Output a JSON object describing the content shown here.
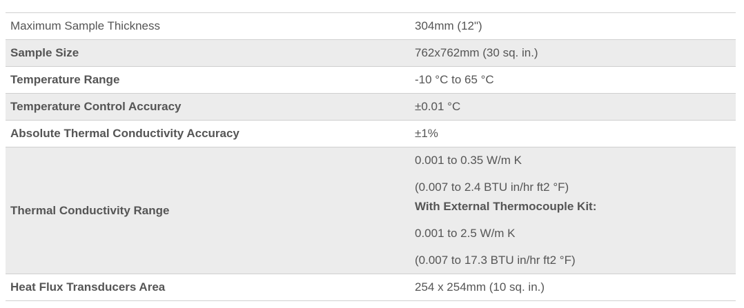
{
  "specs": {
    "rows": [
      {
        "label": "Maximum Sample Thickness",
        "value": "304mm (12\")"
      },
      {
        "label": "Sample Size",
        "value": "762x762mm (30 sq. in.)"
      },
      {
        "label": "Temperature Range",
        "value": "-10 °C to 65 °C"
      },
      {
        "label": "Temperature Control Accuracy",
        "value": "±0.01 °C"
      },
      {
        "label": "Absolute Thermal Conductivity Accuracy",
        "value": "±1%"
      },
      {
        "label": "Thermal Conductivity Range",
        "lines": [
          "0.001 to 0.35 W/m K",
          "(0.007 to 2.4 BTU in/hr ft2 °F)",
          "With External Thermocouple Kit:",
          "0.001 to 2.5 W/m K",
          "(0.007 to 17.3 BTU in/hr ft2 °F)"
        ]
      },
      {
        "label": "Heat Flux Transducers Area",
        "value": "254 x 254mm (10 sq. in.)"
      }
    ]
  }
}
